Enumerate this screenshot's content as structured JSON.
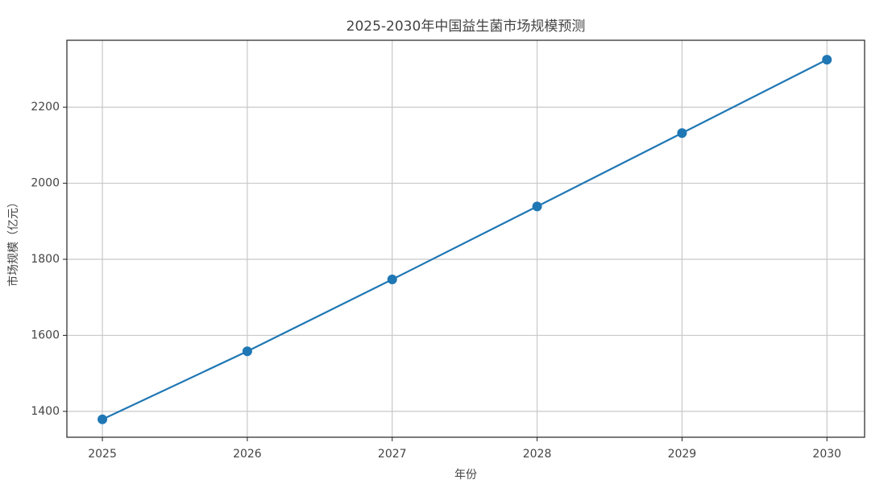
{
  "chart_data": {
    "type": "line",
    "title": "2025-2030年中国益生菌市场规模预测",
    "x_label": "年份",
    "y_label": "市场规模（亿元）",
    "x": [
      2025,
      2026,
      2027,
      2028,
      2029,
      2030
    ],
    "series": [
      {
        "name": "市场规模",
        "color": "#1f77b4",
        "values": [
          1379,
          1558,
          1747,
          1939,
          2132,
          2325
        ]
      }
    ],
    "xlim": [
      2024.755,
      2030.26
    ],
    "xticks": [
      2025,
      2026,
      2027,
      2028,
      2029,
      2030
    ],
    "ylim": [
      1332,
      2376
    ],
    "yticks": [
      1400,
      1600,
      1800,
      2000,
      2200
    ],
    "grid": true
  }
}
